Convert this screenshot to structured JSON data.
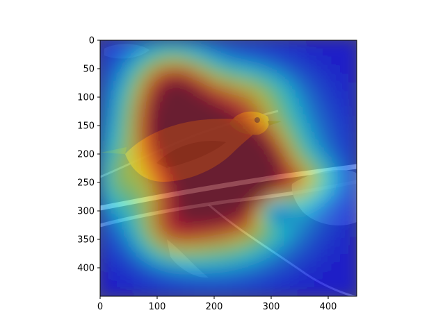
{
  "chart_data": {
    "type": "heatmap",
    "description_visible": "image with attention heatmap overlay",
    "xlim": [
      0,
      450
    ],
    "ylim": [
      450,
      0
    ],
    "x_ticks": [
      0,
      100,
      200,
      300,
      400
    ],
    "y_ticks": [
      0,
      50,
      100,
      150,
      200,
      250,
      300,
      350,
      400
    ],
    "colormap": "jet",
    "colormap_stops": [
      "#00007f",
      "#0000ff",
      "#007fff",
      "#00ffff",
      "#7fff7f",
      "#ffff00",
      "#ff7f00",
      "#ff0000",
      "#7f0000"
    ],
    "overlay_alpha": 0.55,
    "hotspots": [
      {
        "x": 210,
        "y": 205,
        "sx": 95,
        "sy": 85,
        "v": 0.9
      },
      {
        "x": 265,
        "y": 220,
        "sx": 45,
        "sy": 40,
        "v": 0.35
      },
      {
        "x": 175,
        "y": 165,
        "sx": 55,
        "sy": 45,
        "v": 0.3
      },
      {
        "x": 105,
        "y": 120,
        "sx": 50,
        "sy": 70,
        "v": 0.45
      },
      {
        "x": 140,
        "y": 70,
        "sx": 45,
        "sy": 35,
        "v": 0.3
      },
      {
        "x": 200,
        "y": 310,
        "sx": 85,
        "sy": 60,
        "v": 0.45
      },
      {
        "x": 120,
        "y": 340,
        "sx": 40,
        "sy": 35,
        "v": 0.25
      },
      {
        "x": 360,
        "y": 245,
        "sx": 40,
        "sy": 25,
        "v": 0.25
      },
      {
        "x": 30,
        "y": 245,
        "sx": 25,
        "sy": 40,
        "v": 0.2
      },
      {
        "x": 260,
        "y": 90,
        "sx": 55,
        "sy": 30,
        "v": 0.18
      }
    ],
    "coldspots": [
      {
        "x": 305,
        "y": 300,
        "sx": 22,
        "sy": 18,
        "v": 0.35
      }
    ],
    "background_level": 0.12
  }
}
